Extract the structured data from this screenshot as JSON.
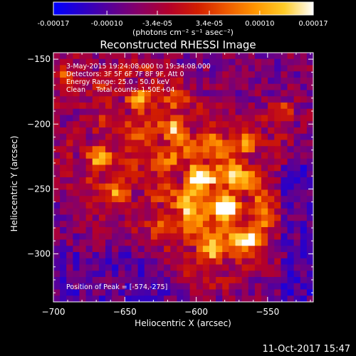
{
  "colorbar": {
    "tick_labels": [
      "-0.00017",
      "-0.00010",
      "-3.4e-05",
      "3.4e-05",
      "0.00010",
      "0.00017"
    ],
    "tick_values": [
      -0.00017,
      -0.0001,
      -3.4e-05,
      3.4e-05,
      0.0001,
      0.00017
    ],
    "range": [
      -0.00017,
      0.00017
    ],
    "units": "(photons cm⁻² s⁻¹ asec⁻²)",
    "colors": [
      "#0000ff",
      "#2a00c8",
      "#5a0096",
      "#8a0064",
      "#b4002a",
      "#d21e00",
      "#ee5a00",
      "#ff9600",
      "#ffcc28",
      "#ffffff"
    ]
  },
  "chart_data": {
    "type": "heatmap",
    "title": "Reconstructed RHESSI Image",
    "xlabel": "Heliocentric X (arcsec)",
    "ylabel": "Heliocentric Y (arcsec)",
    "xlim": [
      -700,
      -518
    ],
    "ylim": [
      -337,
      -145
    ],
    "xticks": [
      -700,
      -650,
      -600,
      -550
    ],
    "yticks": [
      -300,
      -250,
      -200,
      -150
    ],
    "xtick_labels": [
      "−700",
      "−650",
      "−600",
      "−550"
    ],
    "ytick_labels": [
      "−300",
      "−250",
      "−200",
      "−150"
    ],
    "annotations": [
      "3-May-2015 19:24:08.000 to 19:34:08.000",
      "Detectors: 3F 5F 6F 7F 8F 9F, Att 0",
      "Energy Range: 25.0 - 50.0 keV",
      "Clean     Total counts: 1.50E+04"
    ],
    "peak_label": "Position of Peak = [-574,-275]",
    "peak": [
      -574,
      -275
    ],
    "grid_cols": 40,
    "grid_rows": 40
  },
  "footer": {
    "timestamp": "11-Oct-2017 15:47"
  }
}
